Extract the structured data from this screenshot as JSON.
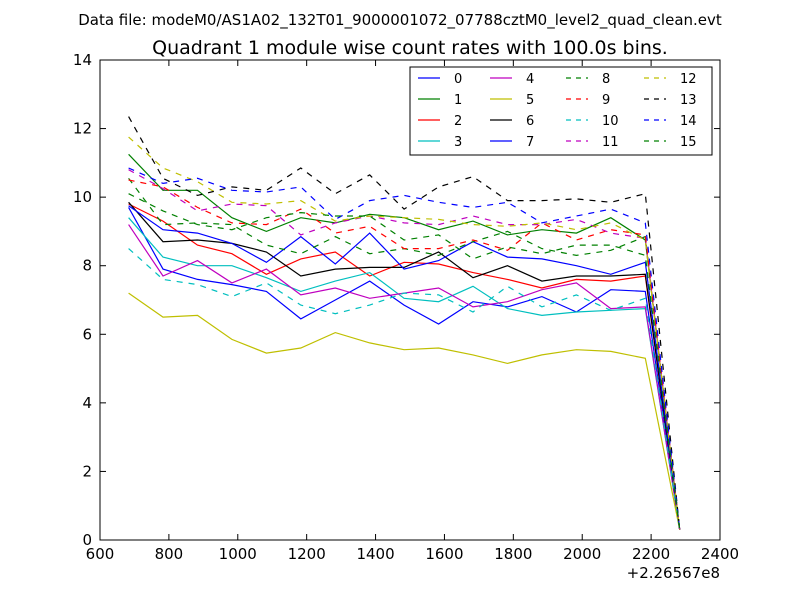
{
  "header": {
    "data_file": "Data file: modeM0/AS1A02_132T01_9000001072_07788cztM0_level2_quad_clean.evt"
  },
  "chart_data": {
    "type": "line",
    "title": "Quadrant 1 module wise count rates with 100.0s bins.",
    "xlabel": "",
    "ylabel": "",
    "x_offset_label": "+2.26567e8",
    "xlim": [
      600,
      2400
    ],
    "ylim": [
      0,
      14
    ],
    "xticks": [
      "600",
      "800",
      "1000",
      "1200",
      "1400",
      "1600",
      "1800",
      "2000",
      "2200",
      "2400"
    ],
    "yticks": [
      "0",
      "2",
      "4",
      "6",
      "8",
      "10",
      "12",
      "14"
    ],
    "grid": false,
    "legend_position": "top-right",
    "x": [
      683,
      783,
      883,
      983,
      1083,
      1183,
      1283,
      1383,
      1483,
      1583,
      1683,
      1783,
      1883,
      1983,
      2083,
      2183,
      2283
    ],
    "series": [
      {
        "name": "0",
        "color": "#0000ff",
        "dash": "solid",
        "values": [
          9.7,
          7.9,
          7.6,
          7.45,
          7.25,
          6.45,
          7.0,
          7.55,
          6.85,
          6.3,
          6.95,
          6.8,
          7.1,
          6.65,
          7.3,
          7.25,
          0.3
        ]
      },
      {
        "name": "1",
        "color": "#008000",
        "dash": "solid",
        "values": [
          11.25,
          10.2,
          10.2,
          9.4,
          9.0,
          9.4,
          9.25,
          9.5,
          9.4,
          9.05,
          9.3,
          8.9,
          9.05,
          8.95,
          9.4,
          8.75,
          0.3
        ]
      },
      {
        "name": "2",
        "color": "#ff0000",
        "dash": "solid",
        "values": [
          9.8,
          9.3,
          8.6,
          8.35,
          7.75,
          8.2,
          8.4,
          7.7,
          8.1,
          8.05,
          7.8,
          7.6,
          7.35,
          7.6,
          7.55,
          7.7,
          0.3
        ]
      },
      {
        "name": "3",
        "color": "#00bfbf",
        "dash": "solid",
        "values": [
          9.4,
          8.25,
          8.0,
          8.0,
          7.65,
          7.25,
          7.55,
          7.8,
          7.05,
          6.95,
          7.4,
          6.75,
          6.55,
          6.65,
          6.7,
          6.75,
          0.3
        ]
      },
      {
        "name": "4",
        "color": "#bf00bf",
        "dash": "solid",
        "values": [
          9.2,
          7.7,
          8.15,
          7.5,
          7.9,
          7.15,
          7.35,
          7.05,
          7.2,
          7.35,
          6.8,
          6.95,
          7.3,
          7.5,
          6.75,
          6.8,
          0.3
        ]
      },
      {
        "name": "5",
        "color": "#bfbf00",
        "dash": "solid",
        "values": [
          7.2,
          6.5,
          6.55,
          5.85,
          5.45,
          5.6,
          6.05,
          5.75,
          5.55,
          5.6,
          5.4,
          5.15,
          5.4,
          5.55,
          5.5,
          5.3,
          0.3
        ]
      },
      {
        "name": "6",
        "color": "#000000",
        "dash": "solid",
        "values": [
          9.85,
          8.7,
          8.75,
          8.65,
          8.4,
          7.7,
          7.9,
          7.95,
          7.95,
          8.4,
          7.65,
          8.0,
          7.55,
          7.7,
          7.7,
          7.75,
          0.3
        ]
      },
      {
        "name": "7",
        "color": "#0000ff",
        "dash": "solid",
        "values": [
          9.75,
          9.05,
          8.95,
          8.65,
          8.1,
          8.85,
          8.05,
          8.95,
          7.9,
          8.15,
          8.7,
          8.25,
          8.2,
          8.0,
          7.75,
          8.1,
          0.3
        ]
      },
      {
        "name": "8",
        "color": "#008000",
        "dash": "dashed",
        "values": [
          10.55,
          9.2,
          9.25,
          9.2,
          8.6,
          8.35,
          8.85,
          8.35,
          8.5,
          8.3,
          8.7,
          9.0,
          8.5,
          8.3,
          8.45,
          8.85,
          0.3
        ]
      },
      {
        "name": "9",
        "color": "#ff0000",
        "dash": "dashed",
        "values": [
          10.5,
          10.3,
          9.7,
          9.25,
          9.2,
          9.65,
          8.95,
          9.15,
          8.5,
          8.5,
          8.75,
          8.45,
          9.25,
          8.75,
          9.05,
          8.9,
          0.3
        ]
      },
      {
        "name": "10",
        "color": "#00bfbf",
        "dash": "dashed",
        "values": [
          8.5,
          7.6,
          7.45,
          7.1,
          7.5,
          6.85,
          6.6,
          6.85,
          7.2,
          7.15,
          6.65,
          7.4,
          6.8,
          7.15,
          6.7,
          7.05,
          0.3
        ]
      },
      {
        "name": "11",
        "color": "#bf00bf",
        "dash": "dashed",
        "values": [
          10.8,
          10.25,
          9.6,
          9.8,
          9.75,
          8.9,
          9.25,
          9.45,
          9.25,
          9.2,
          9.45,
          9.2,
          9.2,
          9.35,
          8.95,
          8.8,
          0.3
        ]
      },
      {
        "name": "12",
        "color": "#bfbf00",
        "dash": "dashed",
        "values": [
          11.75,
          10.85,
          10.45,
          9.85,
          9.8,
          9.9,
          9.3,
          9.45,
          9.4,
          9.35,
          9.2,
          9.15,
          9.25,
          9.05,
          9.25,
          8.75,
          0.3
        ]
      },
      {
        "name": "13",
        "color": "#000000",
        "dash": "dashed",
        "values": [
          12.35,
          10.55,
          10.05,
          10.3,
          10.2,
          10.85,
          10.1,
          10.65,
          9.65,
          10.3,
          10.6,
          9.9,
          9.9,
          9.95,
          9.85,
          10.1,
          0.3
        ]
      },
      {
        "name": "14",
        "color": "#0000ff",
        "dash": "dashed",
        "values": [
          10.85,
          10.4,
          10.55,
          10.2,
          10.15,
          10.3,
          9.35,
          9.9,
          10.05,
          9.85,
          9.7,
          9.85,
          9.25,
          9.45,
          9.65,
          9.25,
          0.3
        ]
      },
      {
        "name": "15",
        "color": "#008000",
        "dash": "dashed",
        "values": [
          10.1,
          9.6,
          9.2,
          9.05,
          9.4,
          9.55,
          9.45,
          9.45,
          8.75,
          8.9,
          8.2,
          8.55,
          8.35,
          8.6,
          8.6,
          8.3,
          0.3
        ]
      }
    ]
  }
}
